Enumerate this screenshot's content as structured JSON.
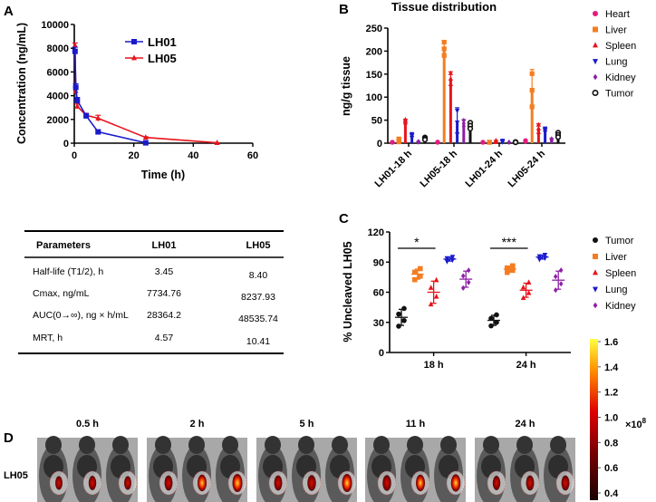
{
  "panels": {
    "a": "A",
    "b": "B",
    "c": "C",
    "d": "D"
  },
  "chart_data": [
    {
      "type": "line",
      "title": "",
      "xlabel": "Time (h)",
      "ylabel": "Concentration (ng/mL)",
      "xlim": [
        0,
        60
      ],
      "ylim": [
        0,
        10000
      ],
      "xticks": [
        "0",
        "20",
        "40",
        "60"
      ],
      "yticks": [
        "0",
        "2000",
        "4000",
        "6000",
        "8000",
        "10000"
      ],
      "legend": "top-right",
      "series": [
        {
          "name": "LH01",
          "color": "#1a1acc",
          "marker": "square",
          "x": [
            0.25,
            0.5,
            1,
            4,
            8,
            24
          ],
          "y": [
            7735,
            4700,
            3600,
            2300,
            950,
            30
          ],
          "err": [
            350,
            300,
            250,
            200,
            150,
            20
          ]
        },
        {
          "name": "LH05",
          "color": "#e8141c",
          "marker": "triangle",
          "x": [
            0.25,
            0.5,
            1,
            4,
            8,
            24,
            48
          ],
          "y": [
            8238,
            4400,
            3100,
            2350,
            2100,
            480,
            30
          ],
          "err": [
            200,
            300,
            200,
            150,
            250,
            60,
            10
          ]
        }
      ]
    },
    {
      "type": "bar",
      "title": "Tissue distribution",
      "xlabel": "",
      "ylabel": "ng/g tissue",
      "ylim": [
        0,
        250
      ],
      "yticks": [
        "0",
        "50",
        "100",
        "150",
        "200",
        "250"
      ],
      "categories": [
        "LH01-18 h",
        "LH05-18 h",
        "LH01-24 h",
        "LH05-24 h"
      ],
      "legend": "right",
      "series": [
        {
          "name": "Heart",
          "color": "#e6197f",
          "marker": "circle",
          "values": [
            1,
            2,
            0,
            5
          ],
          "err": [
            0.5,
            0.5,
            0,
            1
          ]
        },
        {
          "name": "Liver",
          "color": "#f57c20",
          "marker": "square",
          "values": [
            6,
            205,
            0,
            115
          ],
          "err": [
            4,
            18,
            0,
            45
          ]
        },
        {
          "name": "Spleen",
          "color": "#e8141c",
          "marker": "triangle",
          "values": [
            48,
            140,
            4,
            32
          ],
          "err": [
            4,
            15,
            2,
            10
          ]
        },
        {
          "name": "Lung",
          "color": "#1a1acc",
          "marker": "triangle-down",
          "values": [
            16,
            45,
            4,
            28
          ],
          "err": [
            5,
            32,
            2,
            5
          ]
        },
        {
          "name": "Kidney",
          "color": "#8e1fa6",
          "marker": "diamond",
          "values": [
            3,
            43,
            0,
            7
          ],
          "err": [
            1,
            8,
            0,
            3
          ]
        },
        {
          "name": "Tumor",
          "color": "#111111",
          "marker": "open-circle",
          "values": [
            10,
            38,
            2,
            18
          ],
          "err": [
            3,
            8,
            1,
            6
          ]
        }
      ]
    },
    {
      "type": "scatter",
      "title": "",
      "xlabel": "",
      "ylabel": "% Uncleaved LH05",
      "ylim": [
        0,
        120
      ],
      "yticks": [
        "0",
        "30",
        "60",
        "90",
        "120"
      ],
      "categories": [
        "18 h",
        "24 h"
      ],
      "legend": "right",
      "series": [
        {
          "name": "Tumor",
          "color": "#111111",
          "marker": "circle",
          "mean": [
            35,
            32
          ],
          "sd": [
            8,
            5
          ]
        },
        {
          "name": "Liver",
          "color": "#f57c20",
          "marker": "square",
          "mean": [
            78,
            83
          ],
          "sd": [
            5,
            3
          ]
        },
        {
          "name": "Spleen",
          "color": "#e8141c",
          "marker": "triangle",
          "mean": [
            60,
            62
          ],
          "sd": [
            11,
            7
          ]
        },
        {
          "name": "Lung",
          "color": "#1a1acc",
          "marker": "triangle-down",
          "mean": [
            93,
            95
          ],
          "sd": [
            2,
            2
          ]
        },
        {
          "name": "Kidney",
          "color": "#8e1fa6",
          "marker": "diamond",
          "mean": [
            73,
            72
          ],
          "sd": [
            8,
            9
          ]
        }
      ],
      "annotations": [
        {
          "label": "*",
          "category": "18 h",
          "from": "Tumor",
          "to": "Spleen"
        },
        {
          "label": "***",
          "category": "24 h",
          "from": "Tumor",
          "to": "Spleen"
        }
      ]
    },
    {
      "type": "heatmap",
      "title": "",
      "colorbar_ticks": [
        "1.6",
        "1.4",
        "1.2",
        "1.0",
        "0.8",
        "0.6",
        "0.4"
      ],
      "colorbar_range": [
        0.4,
        1.6
      ],
      "colorbar_multiplier": "×10",
      "colorbar_exponent": "8",
      "row_label": "LH05",
      "timepoints": [
        "0.5 h",
        "2 h",
        "5 h",
        "11 h",
        "24 h"
      ]
    }
  ],
  "table": {
    "headers": [
      "Parameters",
      "LH01",
      "LH05"
    ],
    "rows": [
      [
        "Half-life (T1/2), h",
        "3.45",
        "8.40"
      ],
      [
        "Cmax, ng/mL",
        "7734.76",
        "8237.93"
      ],
      [
        "AUC(0→∞), ng × h/mL",
        "28364.2",
        "48535.74"
      ],
      [
        "MRT, h",
        "4.57",
        "10.41"
      ]
    ]
  }
}
